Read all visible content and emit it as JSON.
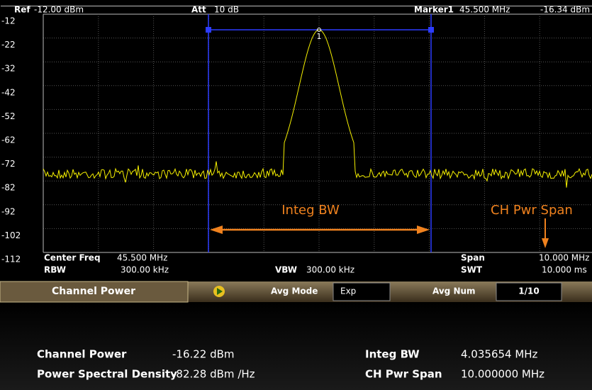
{
  "header": {
    "ref_label": "Ref",
    "ref_value": "-12.00 dBm",
    "att_label": "Att",
    "att_value": "10 dB",
    "marker_label": "Marker1",
    "marker_freq": "45.500 MHz",
    "marker_level": "-16.34 dBm"
  },
  "y_labels": [
    "-12",
    "-22",
    "-32",
    "-42",
    "-52",
    "-62",
    "-72",
    "-82",
    "-92",
    "-102",
    "-112"
  ],
  "marker_number": "1",
  "annotations": {
    "integ_bw": "Integ BW",
    "ch_pwr_span": "CH Pwr Span"
  },
  "footer": {
    "center_freq_label": "Center Freq",
    "center_freq": "45.500 MHz",
    "rbw_label": "RBW",
    "rbw": "300.00 kHz",
    "vbw_label": "VBW",
    "vbw": "300.00 kHz",
    "span_label": "Span",
    "span": "10.000 MHz",
    "swt_label": "SWT",
    "swt": "10.000 ms"
  },
  "toolbar": {
    "title": "Channel Power",
    "avg_mode_label": "Avg Mode",
    "avg_mode": "Exp",
    "avg_num_label": "Avg Num",
    "avg_num": "1/10"
  },
  "results": [
    {
      "label": "Channel Power",
      "value": "-16.22 dBm",
      "label2": "Integ BW",
      "value2": "4.035654 MHz"
    },
    {
      "label": "Power Spectral Density",
      "value": "-82.28 dBm /Hz",
      "label2": "CH Pwr Span",
      "value2": "10.000000 MHz"
    }
  ]
}
